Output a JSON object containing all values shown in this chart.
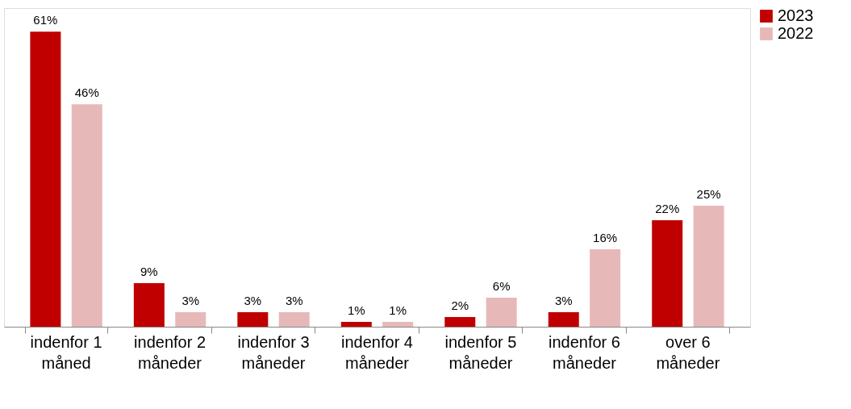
{
  "chart_data": {
    "type": "bar",
    "categories": [
      "indenfor 1 måned",
      "indenfor 2 måneder",
      "indenfor 3 måneder",
      "indenfor 4 måneder",
      "indenfor 5 måneder",
      "indenfor 6 måneder",
      "over 6 måneder"
    ],
    "series": [
      {
        "name": "2023",
        "color": "#c00000",
        "values": [
          61,
          9,
          3,
          1,
          2,
          3,
          22
        ],
        "value_labels": [
          "61%",
          "9%",
          "3%",
          "1%",
          "2%",
          "3%",
          "22%"
        ]
      },
      {
        "name": "2022",
        "color": "#e6b9b8",
        "values": [
          46,
          3,
          3,
          1,
          6,
          16,
          25
        ],
        "value_labels": [
          "46%",
          "3%",
          "3%",
          "1%",
          "6%",
          "16%",
          "25%"
        ]
      }
    ],
    "legend": "right",
    "grid": false
  }
}
